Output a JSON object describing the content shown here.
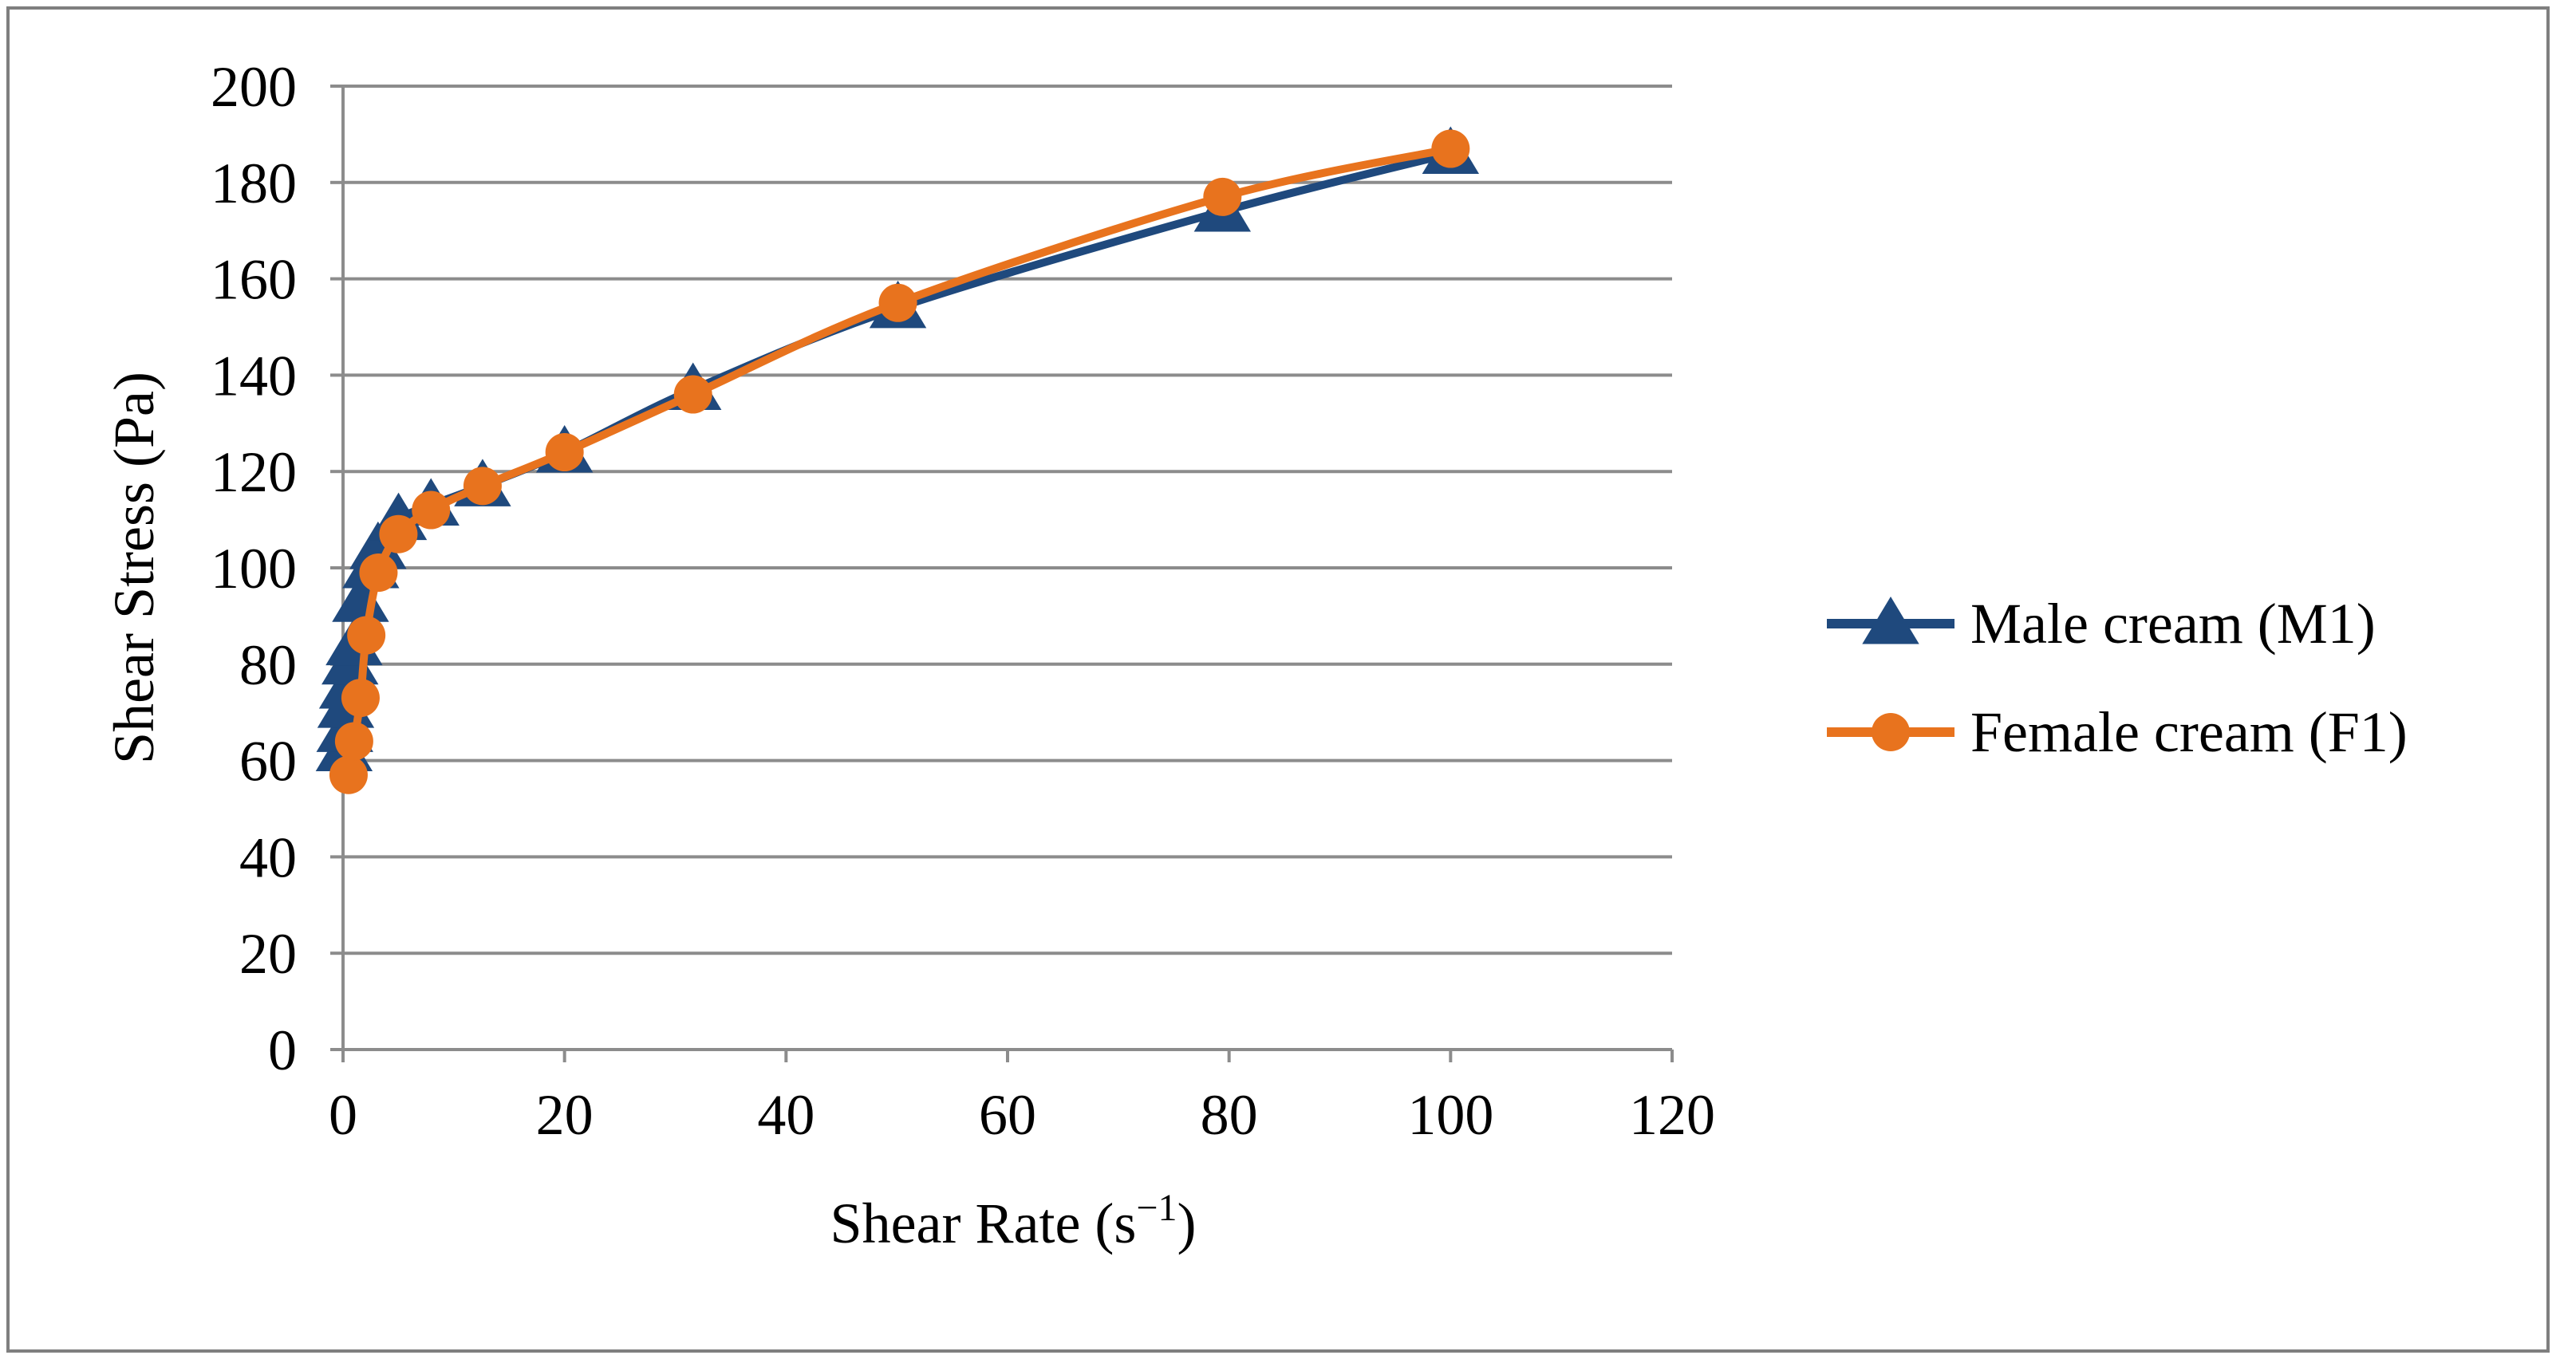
{
  "chart_data": {
    "type": "line",
    "title": "",
    "xlabel": "Shear Rate (s",
    "xlabel_sup": "−1",
    "xlabel_end": ")",
    "ylabel": "Shear Stress (Pa)",
    "xlim": [
      0,
      120
    ],
    "ylim": [
      0,
      200
    ],
    "xticks": [
      "0",
      "20",
      "40",
      "60",
      "80",
      "100",
      "120"
    ],
    "yticks": [
      "0",
      "20",
      "40",
      "60",
      "80",
      "100",
      "120",
      "140",
      "160",
      "180",
      "200"
    ],
    "grid": true,
    "legend_position": "right",
    "series": [
      {
        "name": "Male cream (M1)",
        "color": "#1F497D",
        "marker": "triangle",
        "x": [
          0.1,
          0.16,
          0.25,
          0.4,
          0.63,
          1,
          1.58,
          2.51,
          3.16,
          5.01,
          7.94,
          12.6,
          20,
          31.6,
          50.1,
          79.4,
          100
        ],
        "y": [
          62,
          66,
          71,
          75,
          80,
          84,
          93,
          100,
          104,
          110,
          113,
          117,
          124,
          137,
          154,
          174,
          186
        ]
      },
      {
        "name": "Female cream (F1)",
        "color": "#E8731E",
        "marker": "circle",
        "x": [
          0.5,
          1,
          1.58,
          2.1,
          3.2,
          5,
          7.94,
          12.6,
          20,
          31.6,
          50.1,
          79.4,
          100
        ],
        "y": [
          57,
          64,
          73,
          86,
          99,
          107,
          112,
          117,
          124,
          136,
          155,
          177,
          187
        ]
      }
    ]
  }
}
